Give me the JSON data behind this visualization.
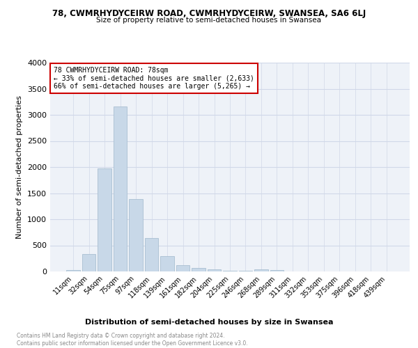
{
  "title_line1": "78, CWMRHYDYCEIRW ROAD, CWMRHYDYCEIRW, SWANSEA, SA6 6LJ",
  "title_line2": "Size of property relative to semi-detached houses in Swansea",
  "xlabel": "Distribution of semi-detached houses by size in Swansea",
  "ylabel": "Number of semi-detached properties",
  "annotation_title": "78 CWMRHYDYCEIRW ROAD: 78sqm",
  "annotation_line2": "← 33% of semi-detached houses are smaller (2,633)",
  "annotation_line3": "66% of semi-detached houses are larger (5,265) →",
  "footer_line1": "Contains HM Land Registry data © Crown copyright and database right 2024.",
  "footer_line2": "Contains public sector information licensed under the Open Government Licence v3.0.",
  "bar_labels": [
    "11sqm",
    "32sqm",
    "54sqm",
    "75sqm",
    "97sqm",
    "118sqm",
    "139sqm",
    "161sqm",
    "182sqm",
    "204sqm",
    "225sqm",
    "246sqm",
    "268sqm",
    "289sqm",
    "311sqm",
    "332sqm",
    "353sqm",
    "375sqm",
    "396sqm",
    "418sqm",
    "439sqm"
  ],
  "bar_values": [
    30,
    330,
    1980,
    3160,
    1390,
    640,
    300,
    120,
    65,
    35,
    15,
    10,
    35,
    25,
    5,
    3,
    2,
    1,
    1,
    1,
    0
  ],
  "bar_color_normal": "#c8d8e8",
  "bar_color_edge": "#a0b8cc",
  "ylim": [
    0,
    4000
  ],
  "yticks": [
    0,
    500,
    1000,
    1500,
    2000,
    2500,
    3000,
    3500,
    4000
  ],
  "grid_color": "#d0d8e8",
  "bg_color": "#eef2f8",
  "annotation_box_color": "#cc0000",
  "annotation_fill": "#ffffff"
}
